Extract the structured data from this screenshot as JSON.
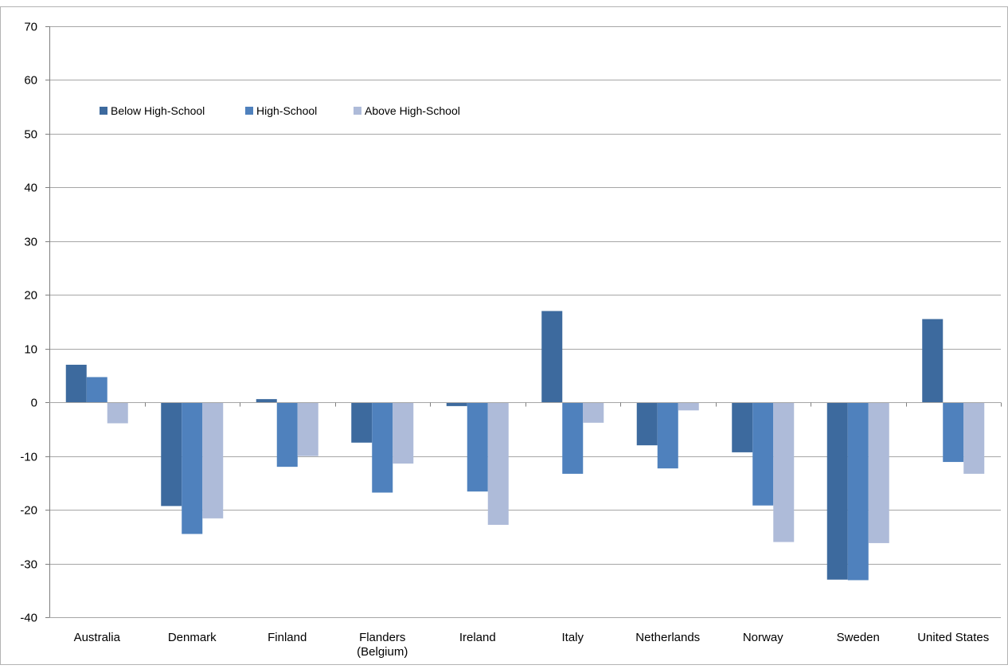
{
  "chart_data": {
    "type": "bar",
    "title": "",
    "xlabel": "",
    "ylabel": "",
    "ylim": [
      -40,
      70
    ],
    "yticks": [
      70,
      60,
      50,
      40,
      30,
      20,
      10,
      0,
      -10,
      -20,
      -30,
      -40
    ],
    "grid": true,
    "legend_position": "top-left",
    "categories": [
      [
        "Australia"
      ],
      [
        "Denmark"
      ],
      [
        "Finland"
      ],
      [
        "Flanders",
        "(Belgium)"
      ],
      [
        "Ireland"
      ],
      [
        "Italy"
      ],
      [
        "Netherlands"
      ],
      [
        "Norway"
      ],
      [
        "Sweden"
      ],
      [
        "United States"
      ]
    ],
    "series": [
      {
        "name": "Below High-School",
        "color": "#3d6a9e",
        "values": [
          7.0,
          -19.3,
          0.6,
          -7.5,
          -0.7,
          17.0,
          -8.0,
          -9.3,
          -33.0,
          15.5
        ]
      },
      {
        "name": "High-School",
        "color": "#4f81bd",
        "values": [
          4.7,
          -24.5,
          -12.0,
          -16.8,
          -16.6,
          -13.3,
          -12.3,
          -19.2,
          -33.1,
          -11.1
        ]
      },
      {
        "name": "Above High-School",
        "color": "#aebbd9",
        "values": [
          -3.9,
          -21.6,
          -10.0,
          -11.4,
          -22.8,
          -3.8,
          -1.5,
          -26.0,
          -26.2,
          -13.3
        ]
      }
    ]
  }
}
